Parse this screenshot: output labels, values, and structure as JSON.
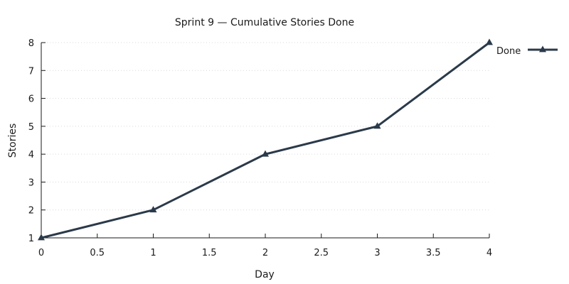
{
  "chart_data": {
    "type": "line",
    "title": "Sprint 9 — Cumulative Stories Done",
    "xlabel": "Day",
    "ylabel": "Stories",
    "xlim": [
      0,
      4
    ],
    "ylim": [
      1,
      8
    ],
    "x_ticks": [
      "0",
      "0.5",
      "1",
      "1.5",
      "2",
      "2.5",
      "3",
      "3.5",
      "4"
    ],
    "y_ticks": [
      "1",
      "2",
      "3",
      "4",
      "5",
      "6",
      "7",
      "8"
    ],
    "grid": true,
    "legend_position": "top-right",
    "series": [
      {
        "name": "Done",
        "marker": "triangle",
        "color": "#2b3a4a",
        "x": [
          0,
          1,
          2,
          3,
          4
        ],
        "y": [
          1,
          2,
          4,
          5,
          8
        ]
      }
    ]
  }
}
